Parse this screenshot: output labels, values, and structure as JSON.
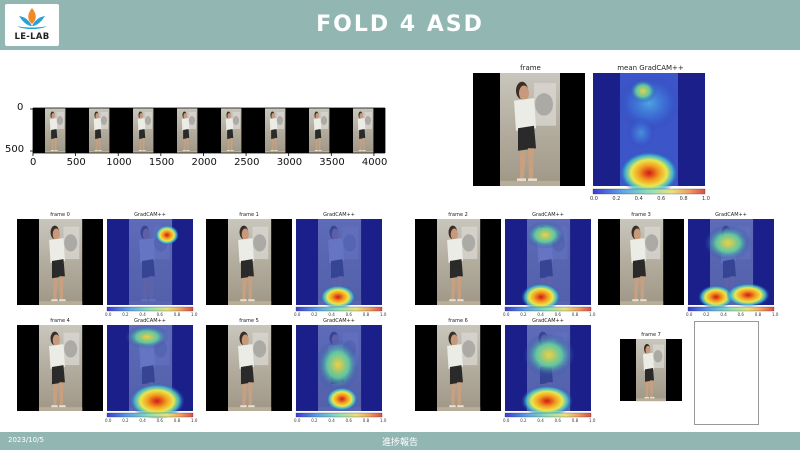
{
  "header": {
    "logo_text": "LE-LAB",
    "title": "FOLD 4 ASD"
  },
  "footer": {
    "date": "2023/10/5",
    "center": "進捗報告"
  },
  "strip_plot": {
    "y_ticks": [
      "0",
      "500"
    ],
    "x_ticks": [
      "0",
      "500",
      "1000",
      "1500",
      "2000",
      "2500",
      "3000",
      "3500",
      "4000"
    ],
    "frame_count": 8
  },
  "mean_panel": {
    "frame_title": "frame",
    "cam_title": "mean GradCAM++",
    "colorbar_ticks": [
      "0.0",
      "0.2",
      "0.4",
      "0.6",
      "0.8",
      "1.0"
    ]
  },
  "frames": [
    {
      "title": "frame 0",
      "cam_title": "GradCAM++"
    },
    {
      "title": "frame 1",
      "cam_title": "GradCAM++"
    },
    {
      "title": "frame 2",
      "cam_title": "GradCAM++"
    },
    {
      "title": "frame 3",
      "cam_title": "GradCAM++"
    },
    {
      "title": "frame 4",
      "cam_title": "GradCAM++"
    },
    {
      "title": "frame 5",
      "cam_title": "GradCAM++"
    },
    {
      "title": "frame 6",
      "cam_title": "GradCAM++"
    },
    {
      "title": "frame 7",
      "cam_title": ""
    }
  ],
  "colorbar_ticks": [
    "0.0",
    "0.2",
    "0.4",
    "0.6",
    "0.8",
    "1.0"
  ],
  "colors": {
    "header_bg": "#92b6b2",
    "cam_dark": "#1a1f8a",
    "hot": "#e03a2a"
  }
}
